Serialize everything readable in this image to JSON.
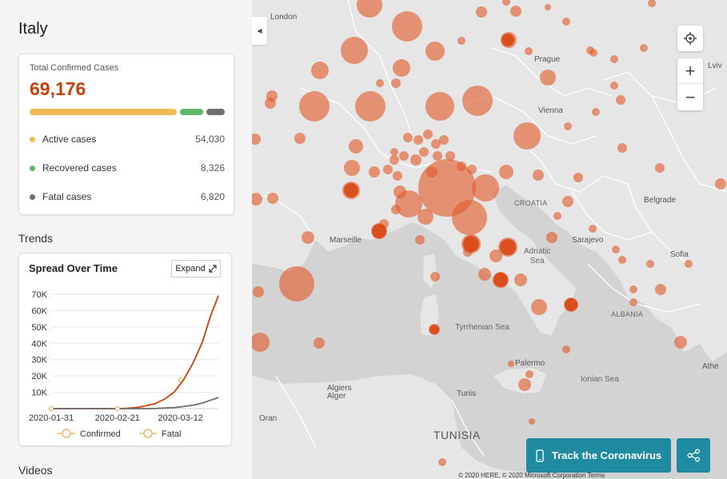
{
  "country": "Italy",
  "cases": {
    "total_label": "Total Confirmed Cases",
    "total": "69,176",
    "colors": {
      "active": "#f0bb56",
      "recovered": "#5cb86a",
      "fatal": "#6e6e6e",
      "total": "#c8400e"
    },
    "rows": [
      {
        "label": "Active cases",
        "value": "54,030"
      },
      {
        "label": "Recovered cases",
        "value": "8,326"
      },
      {
        "label": "Fatal cases",
        "value": "6,820"
      }
    ]
  },
  "trends": {
    "section_title": "Trends",
    "card_title": "Spread Over Time",
    "expand_label": "Expand",
    "expand_icon": "expand-arrow-icon"
  },
  "videos": {
    "section_title": "Videos"
  },
  "chart_data": {
    "type": "line",
    "x_ticks": [
      "2020-01-31",
      "2020-02-21",
      "2020-03-12"
    ],
    "y_ticks": [
      "10K",
      "20K",
      "30K",
      "40K",
      "50K",
      "60K",
      "70K"
    ],
    "ylim": [
      0,
      70000
    ],
    "x_range": [
      "2020-01-31",
      "2020-03-24"
    ],
    "grid": true,
    "legend_position": "bottom",
    "series": [
      {
        "name": "Confirmed",
        "color": "#c8400e",
        "x": [
          "2020-01-31",
          "2020-02-21",
          "2020-02-24",
          "2020-02-27",
          "2020-03-01",
          "2020-03-04",
          "2020-03-07",
          "2020-03-10",
          "2020-03-13",
          "2020-03-16",
          "2020-03-19",
          "2020-03-21",
          "2020-03-22",
          "2020-03-23",
          "2020-03-24"
        ],
        "y": [
          2,
          20,
          229,
          650,
          1694,
          3089,
          5883,
          10149,
          17660,
          27980,
          41035,
          53578,
          59138,
          63927,
          69176
        ]
      },
      {
        "name": "Fatal",
        "color": "#6e6e6e",
        "x": [
          "2020-01-31",
          "2020-02-21",
          "2020-02-27",
          "2020-03-04",
          "2020-03-10",
          "2020-03-13",
          "2020-03-16",
          "2020-03-19",
          "2020-03-21",
          "2020-03-22",
          "2020-03-23",
          "2020-03-24"
        ],
        "y": [
          0,
          1,
          17,
          107,
          631,
          1266,
          2158,
          3405,
          4825,
          5476,
          6077,
          6820
        ]
      }
    ]
  },
  "map": {
    "bubble_color": "#e05a2b",
    "labels": {
      "london": "London",
      "prague": "Prague",
      "lviv": "Lviv",
      "vienna": "Vienna",
      "croatia": "CROATIA",
      "belgrade": "Belgrade",
      "marseille": "Marseille",
      "sarajevo": "Sarajevo",
      "adriatic": "Adriatic\nSea",
      "sofia": "Sofia",
      "albania": "ALBANIA",
      "tyrrhenian": "Tyrrhenian Sea",
      "palermo": "Palermo",
      "ionian": "Ionian Sea",
      "athens": "Athe",
      "algiers": "Algiers\nAlger",
      "tunis": "Tunis",
      "oran": "Oran",
      "tunisia": "TUNISIA"
    },
    "collapse_icon": "chevron-left-icon",
    "locate_icon": "locate-icon",
    "zoom_in": "+",
    "zoom_out": "−",
    "track_label": "Track the Coronavirus",
    "track_icon": "phone-icon",
    "share_icon": "share-icon",
    "copyright": "© 2020 HERE, © 2020 Microsoft Corporation  Terms"
  }
}
